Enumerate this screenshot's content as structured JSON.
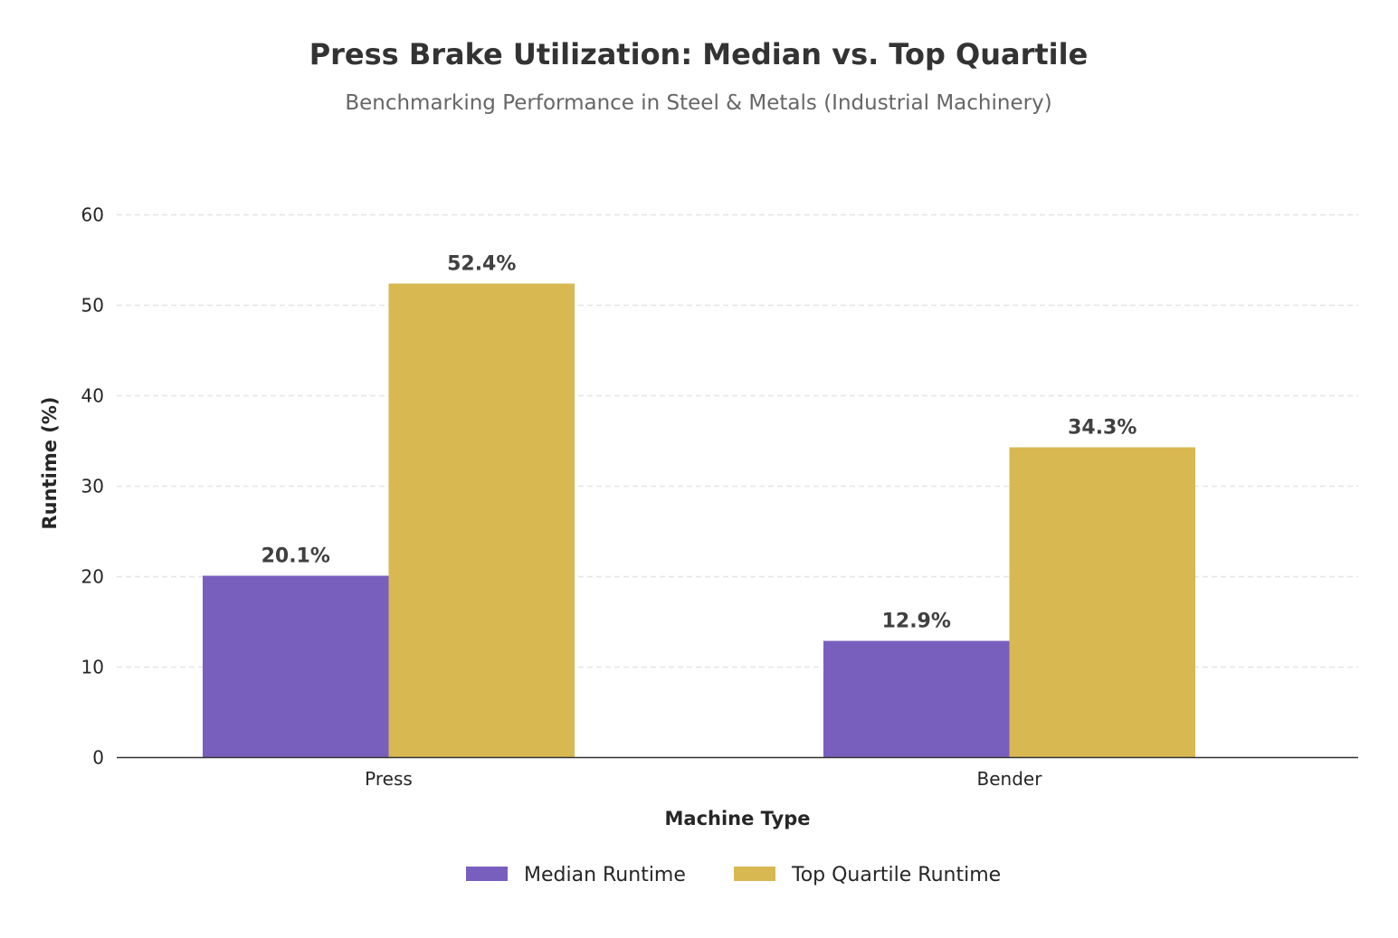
{
  "chart_data": {
    "type": "bar",
    "title": "Press Brake Utilization: Median vs. Top Quartile",
    "subtitle": "Benchmarking Performance in Steel & Metals (Industrial Machinery)",
    "xlabel": "Machine Type",
    "ylabel": "Runtime (%)",
    "categories": [
      "Press",
      "Bender"
    ],
    "series": [
      {
        "name": "Median Runtime",
        "values": [
          20.1,
          12.9
        ],
        "labels": [
          "20.1%",
          "12.9%"
        ],
        "color": "#785fbe"
      },
      {
        "name": "Top Quartile Runtime",
        "values": [
          52.4,
          34.3
        ],
        "labels": [
          "52.4%",
          "34.3%"
        ],
        "color": "#d8b851"
      }
    ],
    "ylim": [
      0,
      60
    ],
    "yticks": [
      "0",
      "10",
      "20",
      "30",
      "40",
      "50",
      "60"
    ],
    "grid": true,
    "legend": "bottom-center"
  }
}
